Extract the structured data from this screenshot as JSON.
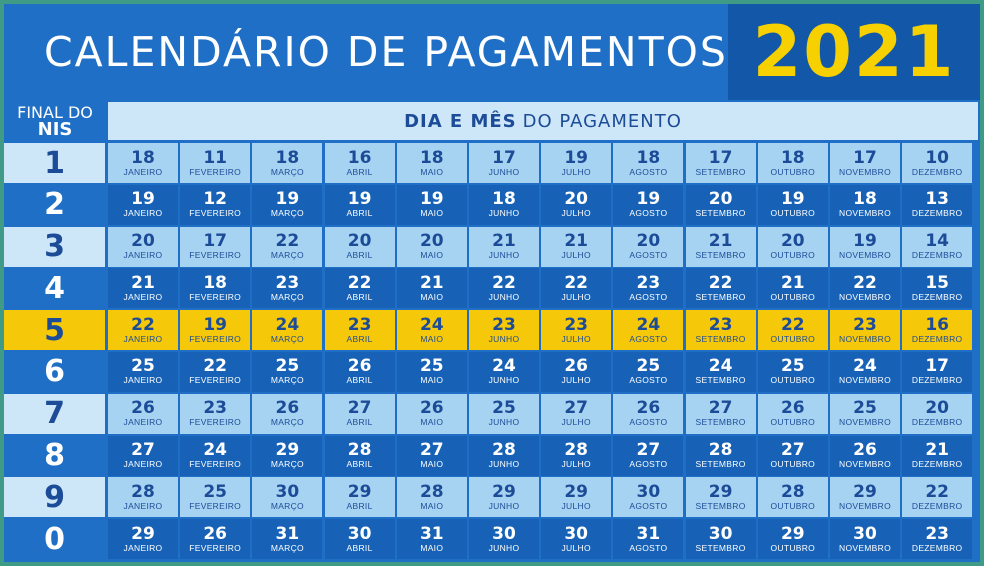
{
  "header": {
    "title": "CALENDÁRIO DE PAGAMENTOS",
    "year": "2021",
    "nis_line1": "FINAL DO",
    "nis_line2": "NIS",
    "dia_bold": "DIA E MÊS",
    "dia_rest": "DO PAGAMENTO"
  },
  "colors": {
    "primary_blue": "#1e6fc5",
    "light_blue": "#a7d3f2",
    "highlight_yellow": "#f5c80a",
    "year_yellow": "#f7d000"
  },
  "months": [
    "JANEIRO",
    "FEVEREIRO",
    "MARÇO",
    "ABRIL",
    "MAIO",
    "JUNHO",
    "JULHO",
    "AGOSTO",
    "SETEMBRO",
    "OUTUBRO",
    "NOVEMBRO",
    "DEZEMBRO"
  ],
  "rows": [
    {
      "nis": "1",
      "style": "light",
      "days": [
        "18",
        "11",
        "18",
        "16",
        "18",
        "17",
        "19",
        "18",
        "17",
        "18",
        "17",
        "10"
      ]
    },
    {
      "nis": "2",
      "style": "dark",
      "days": [
        "19",
        "12",
        "19",
        "19",
        "19",
        "18",
        "20",
        "19",
        "20",
        "19",
        "18",
        "13"
      ]
    },
    {
      "nis": "3",
      "style": "light",
      "days": [
        "20",
        "17",
        "22",
        "20",
        "20",
        "21",
        "21",
        "20",
        "21",
        "20",
        "19",
        "14"
      ]
    },
    {
      "nis": "4",
      "style": "dark",
      "days": [
        "21",
        "18",
        "23",
        "22",
        "21",
        "22",
        "22",
        "23",
        "22",
        "21",
        "22",
        "15"
      ]
    },
    {
      "nis": "5",
      "style": "hl",
      "days": [
        "22",
        "19",
        "24",
        "23",
        "24",
        "23",
        "23",
        "24",
        "23",
        "22",
        "23",
        "16"
      ]
    },
    {
      "nis": "6",
      "style": "dark",
      "days": [
        "25",
        "22",
        "25",
        "26",
        "25",
        "24",
        "26",
        "25",
        "24",
        "25",
        "24",
        "17"
      ]
    },
    {
      "nis": "7",
      "style": "light",
      "days": [
        "26",
        "23",
        "26",
        "27",
        "26",
        "25",
        "27",
        "26",
        "27",
        "26",
        "25",
        "20"
      ]
    },
    {
      "nis": "8",
      "style": "dark",
      "days": [
        "27",
        "24",
        "29",
        "28",
        "27",
        "28",
        "28",
        "27",
        "28",
        "27",
        "26",
        "21"
      ]
    },
    {
      "nis": "9",
      "style": "light",
      "days": [
        "28",
        "25",
        "30",
        "29",
        "28",
        "29",
        "29",
        "30",
        "29",
        "28",
        "29",
        "22"
      ]
    },
    {
      "nis": "0",
      "style": "dark",
      "days": [
        "29",
        "26",
        "31",
        "30",
        "31",
        "30",
        "30",
        "31",
        "30",
        "29",
        "30",
        "23"
      ]
    }
  ]
}
